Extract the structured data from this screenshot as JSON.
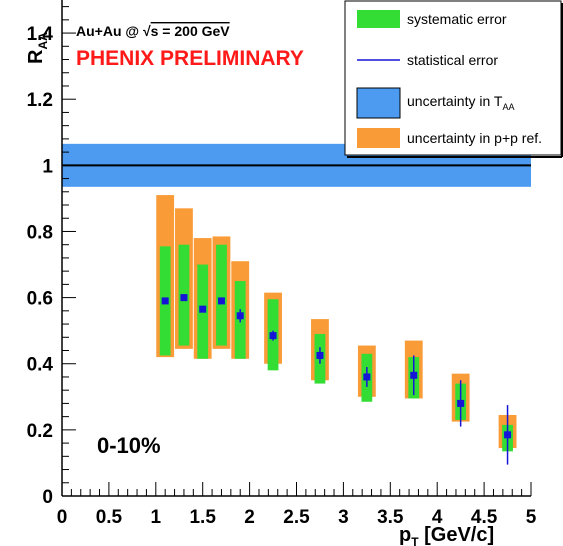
{
  "colors": {
    "systematic": "#33dd33",
    "ppref": "#f99b36",
    "taa": "#4d9bf0",
    "point": "#1515d8",
    "stat": "#1515d8",
    "prelim": "#ff1a1a",
    "reference_line": "#000000"
  },
  "header": {
    "collision_prefix": "Au+Au @ ",
    "sqrt_symbol": "√",
    "collision_energy": "s = 200 GeV",
    "preliminary": "PHENIX PRELIMINARY"
  },
  "centrality_label": "0-10%",
  "legend": {
    "systematic": "systematic error",
    "statistical": "statistical error",
    "taa_prefix": "uncertainty in T",
    "taa_sub": "AA",
    "ppref": "uncertainty in p+p ref."
  },
  "axes": {
    "x_label_main": "p",
    "x_label_sub": "T",
    "x_label_unit": " [GeV/c]",
    "y_label_main": "R",
    "y_label_sub": "AA"
  },
  "chart_data": {
    "type": "scatter",
    "xlim": [
      0,
      5
    ],
    "ylim": [
      0,
      1.5
    ],
    "x_ticks": [
      0,
      0.5,
      1,
      1.5,
      2,
      2.5,
      3,
      3.5,
      4,
      4.5,
      5
    ],
    "x_tick_labels": [
      "0",
      "0.5",
      "1",
      "1.5",
      "2",
      "2.5",
      "3",
      "3.5",
      "4",
      "4.5",
      "5"
    ],
    "y_ticks": [
      0,
      0.2,
      0.4,
      0.6,
      0.8,
      1,
      1.2,
      1.4
    ],
    "y_tick_labels": [
      "0",
      "0.2",
      "0.4",
      "0.6",
      "0.8",
      "1",
      "1.2",
      "1.4"
    ],
    "reference_line": 1.0,
    "taa_band": [
      0.935,
      1.065
    ],
    "legend_position": "top-right",
    "points": [
      {
        "x": 1.1,
        "y": 0.59,
        "sys": [
          0.425,
          0.755
        ],
        "ppref": [
          0.42,
          0.91
        ],
        "stat": [
          0.58,
          0.6
        ]
      },
      {
        "x": 1.3,
        "y": 0.6,
        "sys": [
          0.455,
          0.76
        ],
        "ppref": [
          0.445,
          0.87
        ],
        "stat": [
          0.59,
          0.61
        ]
      },
      {
        "x": 1.5,
        "y": 0.565,
        "sys": [
          0.415,
          0.7
        ],
        "ppref": [
          0.415,
          0.78
        ],
        "stat": [
          0.555,
          0.575
        ]
      },
      {
        "x": 1.7,
        "y": 0.59,
        "sys": [
          0.455,
          0.76
        ],
        "ppref": [
          0.445,
          0.785
        ],
        "stat": [
          0.58,
          0.6
        ]
      },
      {
        "x": 1.9,
        "y": 0.545,
        "sys": [
          0.415,
          0.65
        ],
        "ppref": [
          0.415,
          0.71
        ],
        "stat": [
          0.525,
          0.565
        ]
      },
      {
        "x": 2.25,
        "y": 0.485,
        "sys": [
          0.38,
          0.595
        ],
        "ppref": [
          0.4,
          0.615
        ],
        "stat": [
          0.47,
          0.5
        ]
      },
      {
        "x": 2.75,
        "y": 0.425,
        "sys": [
          0.34,
          0.49
        ],
        "ppref": [
          0.35,
          0.535
        ],
        "stat": [
          0.4,
          0.45
        ]
      },
      {
        "x": 3.25,
        "y": 0.36,
        "sys": [
          0.285,
          0.43
        ],
        "ppref": [
          0.3,
          0.455
        ],
        "stat": [
          0.33,
          0.39
        ]
      },
      {
        "x": 3.75,
        "y": 0.365,
        "sys": [
          0.295,
          0.42
        ],
        "ppref": [
          0.295,
          0.47
        ],
        "stat": [
          0.305,
          0.425
        ]
      },
      {
        "x": 4.25,
        "y": 0.28,
        "sys": [
          0.23,
          0.34
        ],
        "ppref": [
          0.225,
          0.37
        ],
        "stat": [
          0.21,
          0.35
        ]
      },
      {
        "x": 4.75,
        "y": 0.185,
        "sys": [
          0.135,
          0.215
        ],
        "ppref": [
          0.145,
          0.245
        ],
        "stat": [
          0.095,
          0.275
        ]
      }
    ]
  }
}
